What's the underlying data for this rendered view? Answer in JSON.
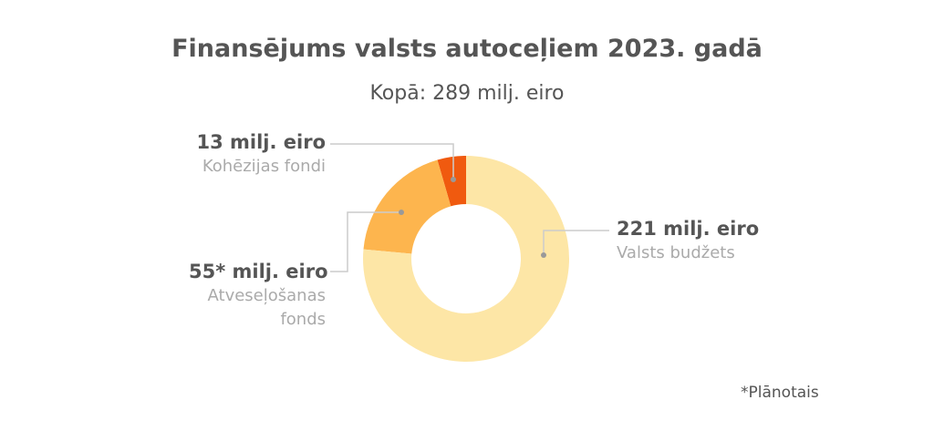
{
  "chart_data": {
    "type": "donut",
    "title": "Finansējums valsts autoceļiem 2023. gadā",
    "subtitle": "Kopā: 289 milj. eiro",
    "categories": [
      "Kohēzijas fondi",
      "Atveseļošanas fonds",
      "Valsts budžets"
    ],
    "values": [
      13,
      55,
      221
    ],
    "value_labels": [
      "13 milj. eiro",
      "55* milj. eiro",
      "221 milj. eiro"
    ],
    "colors": [
      "#f05a0f",
      "#fdb54e",
      "#fde6a6"
    ],
    "footnote": "*Plānotais"
  }
}
